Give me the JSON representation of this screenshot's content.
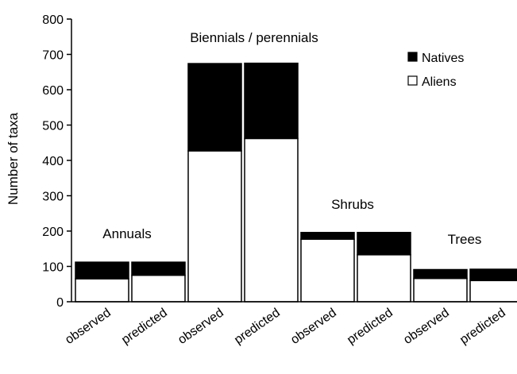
{
  "chart_data": {
    "type": "bar",
    "stacked": true,
    "categories": [
      "observed",
      "predicted",
      "observed",
      "predicted",
      "observed",
      "predicted",
      "observed",
      "predicted"
    ],
    "series": [
      {
        "name": "Aliens",
        "values": [
          65,
          75,
          427,
          462,
          177,
          133,
          66,
          60
        ],
        "fill": "#ffffff"
      },
      {
        "name": "Natives",
        "values": [
          47,
          37,
          247,
          213,
          19,
          63,
          25,
          32
        ],
        "fill": "#000000"
      }
    ],
    "groups": [
      {
        "label": "Annuals",
        "bars": [
          0,
          1
        ]
      },
      {
        "label": "Biennials / perennials",
        "bars": [
          2,
          3
        ]
      },
      {
        "label": "Shrubs",
        "bars": [
          4,
          5
        ]
      },
      {
        "label": "Trees",
        "bars": [
          6,
          7
        ]
      }
    ],
    "ylabel": "Number of taxa",
    "ylim": [
      0,
      800
    ],
    "yticks": [
      0,
      100,
      200,
      300,
      400,
      500,
      600,
      700,
      800
    ],
    "legend": {
      "position": "top-right",
      "order": [
        "Natives",
        "Aliens"
      ]
    },
    "grid": false
  }
}
